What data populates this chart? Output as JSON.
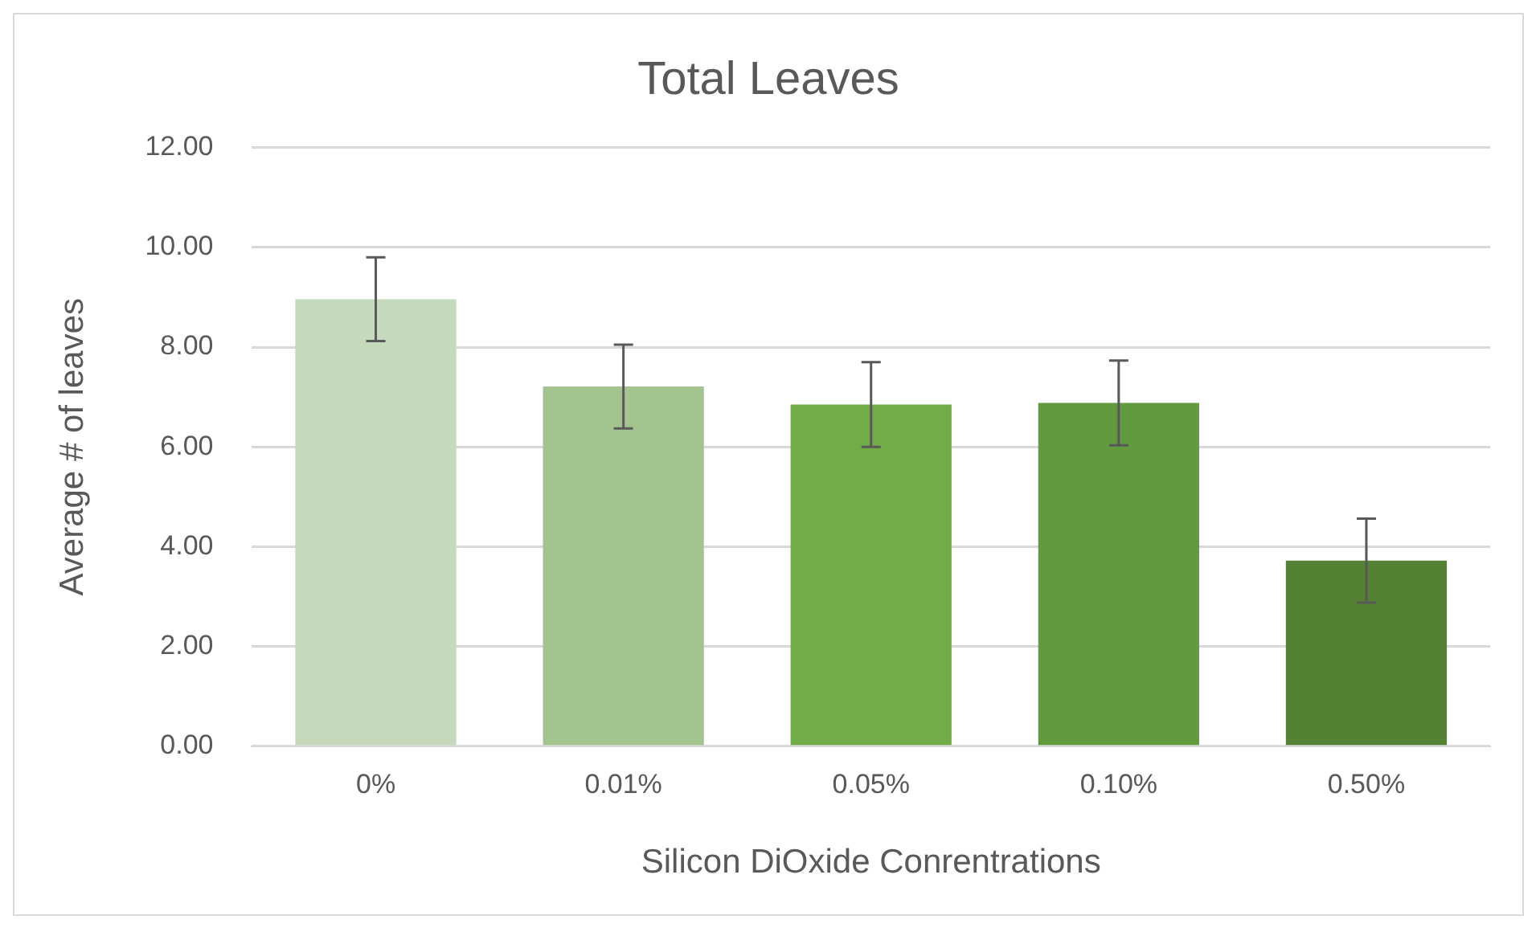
{
  "chart_data": {
    "type": "bar",
    "title": "Total Leaves",
    "xlabel": "Silicon DiOxide Conrentrations",
    "ylabel": "Average # of leaves",
    "categories": [
      "0%",
      "0.01%",
      "0.05%",
      "0.10%",
      "0.50%"
    ],
    "values": [
      8.96,
      7.21,
      6.85,
      6.88,
      3.72
    ],
    "colors": [
      "#c5d9bc",
      "#a3c48f",
      "#70ad47",
      "#629a3e",
      "#548235"
    ],
    "errors": [
      0.84,
      0.84,
      0.85,
      0.85,
      0.84
    ],
    "ylim": [
      0,
      12
    ],
    "yticks": [
      {
        "value": 0,
        "label": "0.00"
      },
      {
        "value": 2,
        "label": "2.00"
      },
      {
        "value": 4,
        "label": "4.00"
      },
      {
        "value": 6,
        "label": "6.00"
      },
      {
        "value": 8,
        "label": "8.00"
      },
      {
        "value": 10,
        "label": "10.00"
      },
      {
        "value": 12,
        "label": "12.00"
      }
    ],
    "grid": "y",
    "legend": false
  }
}
